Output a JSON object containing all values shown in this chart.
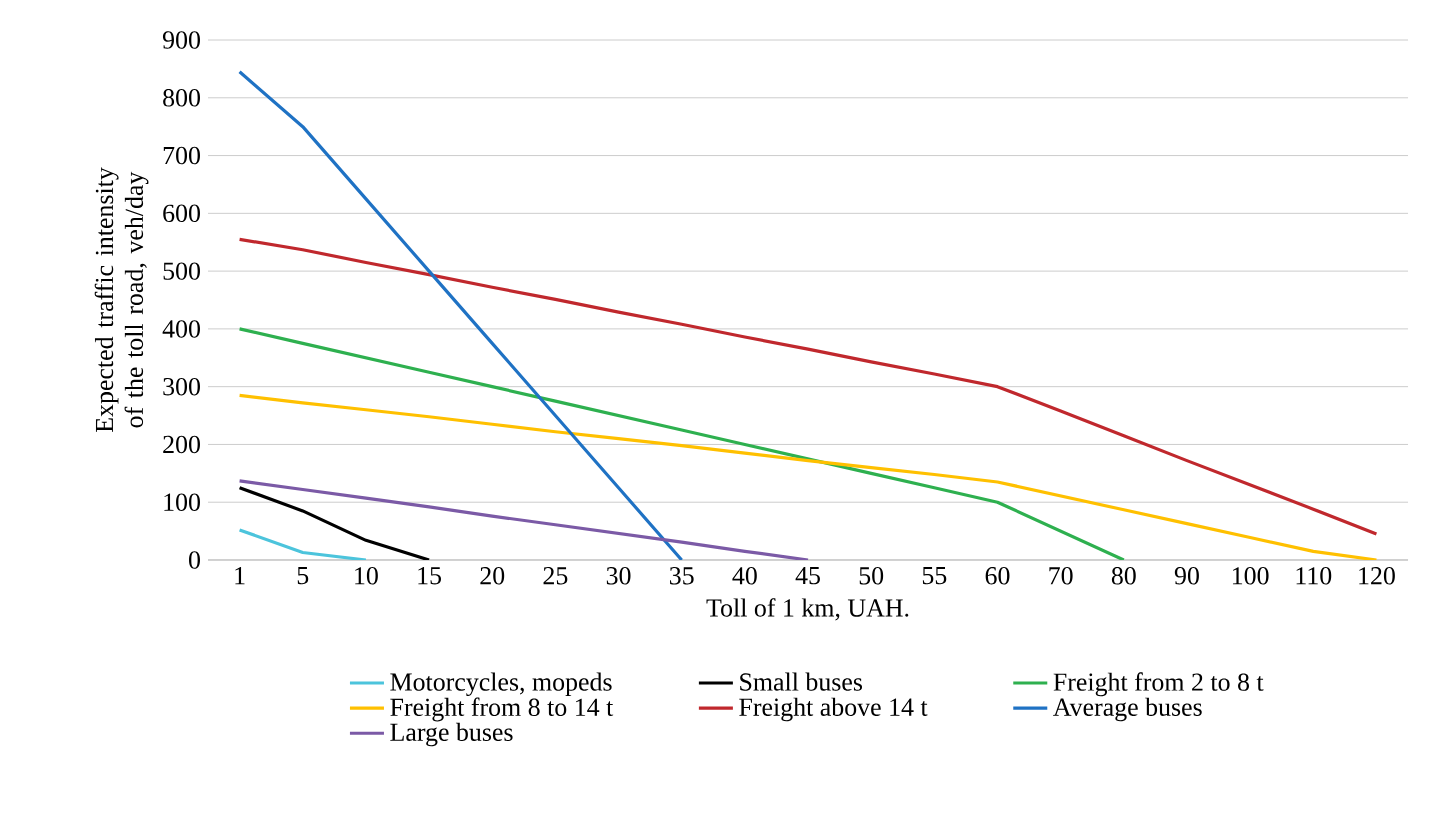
{
  "chart_data": {
    "type": "line",
    "xlabel": "Toll of 1 km, UAH.",
    "ylabel": "Expected traffic intensity of the toll road, veh/day",
    "categories": [
      "1",
      "5",
      "10",
      "15",
      "20",
      "25",
      "30",
      "35",
      "40",
      "45",
      "50",
      "55",
      "60",
      "70",
      "80",
      "90",
      "100",
      "110",
      "120"
    ],
    "ylim": [
      0,
      900
    ],
    "yticks": [
      0,
      100,
      200,
      300,
      400,
      500,
      600,
      700,
      800,
      900
    ],
    "grid": "y",
    "legend": "bottom",
    "marker": "none",
    "line_style": "solid",
    "series": [
      {
        "name": "Motorcycles, mopeds",
        "color": "#4cc4dc",
        "values": [
          52,
          13,
          0,
          null,
          null,
          null,
          null,
          null,
          null,
          null,
          null,
          null,
          null,
          null,
          null,
          null,
          null,
          null,
          null
        ]
      },
      {
        "name": "Small buses",
        "color": "#000000",
        "values": [
          125,
          85,
          34,
          0,
          null,
          null,
          null,
          null,
          null,
          null,
          null,
          null,
          null,
          null,
          null,
          null,
          null,
          null,
          null
        ]
      },
      {
        "name": "Freight from 2 to 8 t",
        "color": "#2eb04f",
        "values": [
          400,
          375,
          350,
          325,
          300,
          275,
          250,
          225,
          200,
          175,
          150,
          125,
          100,
          50,
          0,
          null,
          null,
          null,
          null
        ]
      },
      {
        "name": "Freight from 8 to 14 t",
        "color": "#ffc000",
        "values": [
          285,
          272,
          260,
          248,
          235,
          222,
          210,
          198,
          185,
          172,
          160,
          148,
          135,
          111,
          87,
          63,
          39,
          15,
          0
        ]
      },
      {
        "name": "Freight above 14 t",
        "color": "#c0282d",
        "values": [
          555,
          537,
          515,
          494,
          472,
          451,
          429,
          408,
          386,
          365,
          343,
          322,
          300,
          258,
          215,
          172,
          130,
          88,
          45
        ]
      },
      {
        "name": "Average buses",
        "color": "#1f72c4",
        "values": [
          845,
          750,
          625,
          500,
          375,
          250,
          125,
          0,
          null,
          null,
          null,
          null,
          null,
          null,
          null,
          null,
          null,
          null,
          null
        ]
      },
      {
        "name": "Large buses",
        "color": "#7b5aa6",
        "values": [
          137,
          122,
          107,
          92,
          76,
          61,
          46,
          31,
          15,
          0,
          null,
          null,
          null,
          null,
          null,
          null,
          null,
          null,
          null
        ]
      }
    ]
  }
}
